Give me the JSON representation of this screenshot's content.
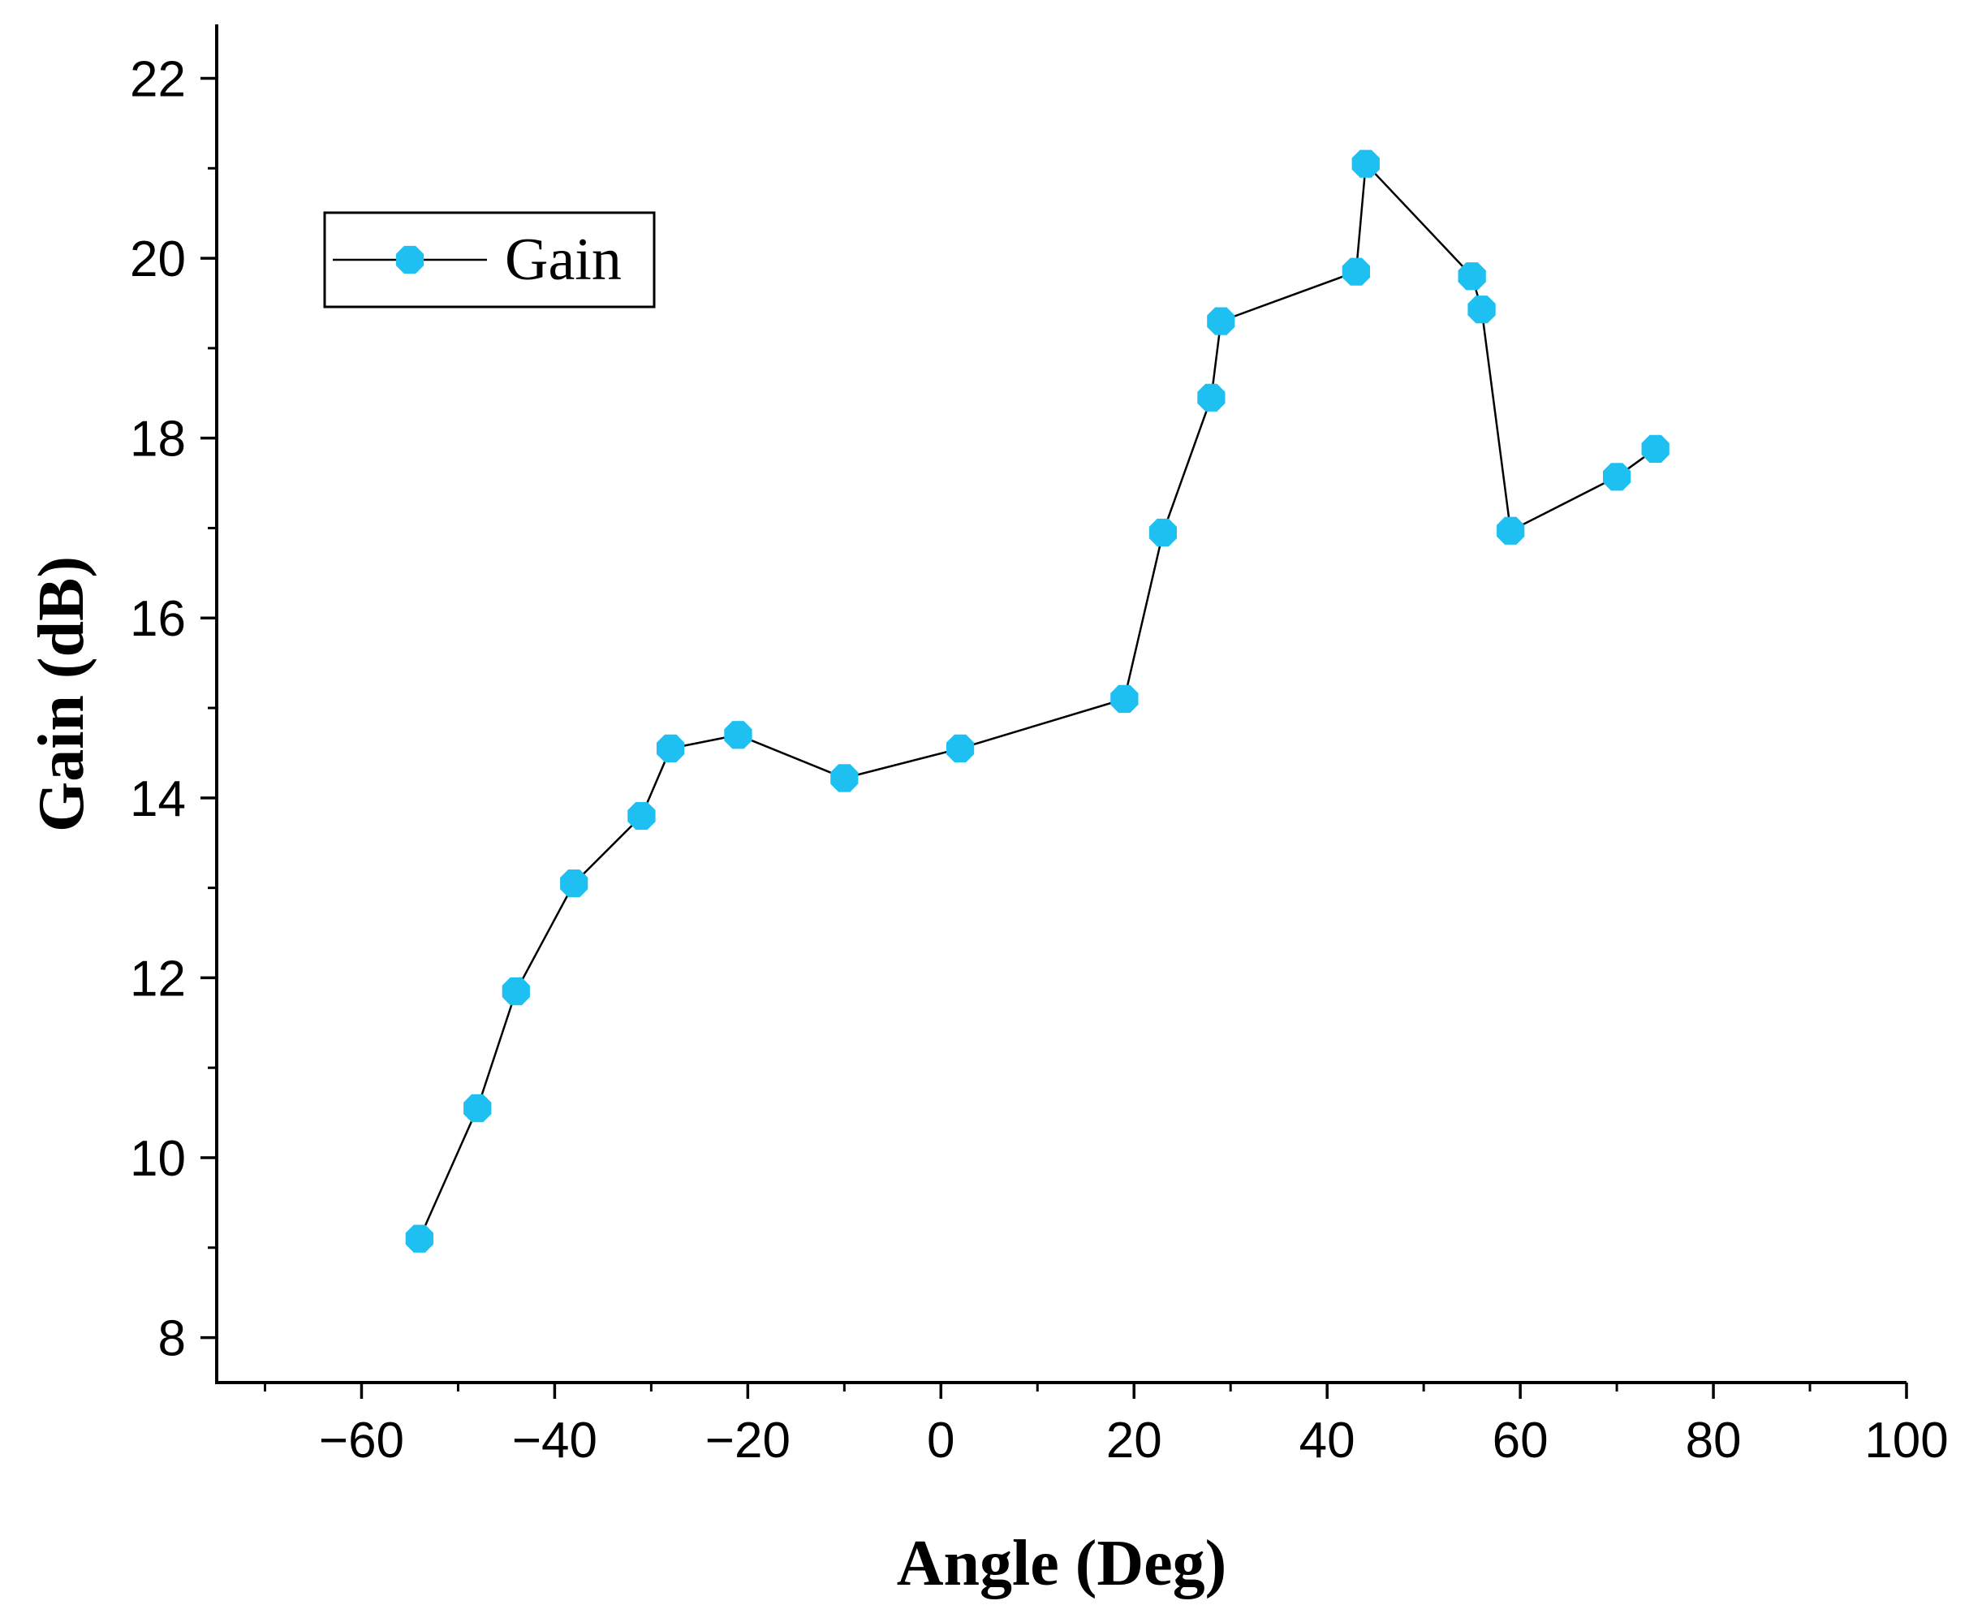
{
  "chart_data": {
    "type": "line",
    "title": "",
    "xlabel": "Angle (Deg)",
    "ylabel": "Gain (dB)",
    "xlim": [
      -75,
      100
    ],
    "ylim": [
      7.5,
      22.6
    ],
    "x_ticks": [
      -60,
      -40,
      -20,
      0,
      20,
      40,
      60,
      80,
      100
    ],
    "x_tick_labels": [
      "−60",
      "−40",
      "−20",
      "0",
      "20",
      "40",
      "60",
      "80",
      "100"
    ],
    "y_ticks": [
      8,
      10,
      12,
      14,
      16,
      18,
      20,
      22
    ],
    "y_tick_labels": [
      "8",
      "10",
      "12",
      "14",
      "16",
      "18",
      "20",
      "22"
    ],
    "x_minor_step": 10,
    "y_minor_step": 1,
    "grid": false,
    "legend": {
      "position": "top-left",
      "entries": [
        "Gain"
      ]
    },
    "series": [
      {
        "name": "Gain",
        "color": "#1ec0f2",
        "line_color": "#000000",
        "marker": "octagon",
        "x": [
          -54,
          -48,
          -44,
          -38,
          -31,
          -28,
          -21,
          -10,
          2,
          19,
          23,
          28,
          29,
          43,
          44,
          55,
          56,
          59,
          70,
          74
        ],
        "y": [
          9.1,
          10.55,
          11.85,
          13.05,
          13.8,
          14.55,
          14.7,
          14.22,
          14.55,
          15.1,
          16.95,
          18.45,
          19.3,
          19.85,
          21.05,
          19.8,
          19.43,
          16.97,
          17.57,
          17.88
        ]
      }
    ]
  }
}
